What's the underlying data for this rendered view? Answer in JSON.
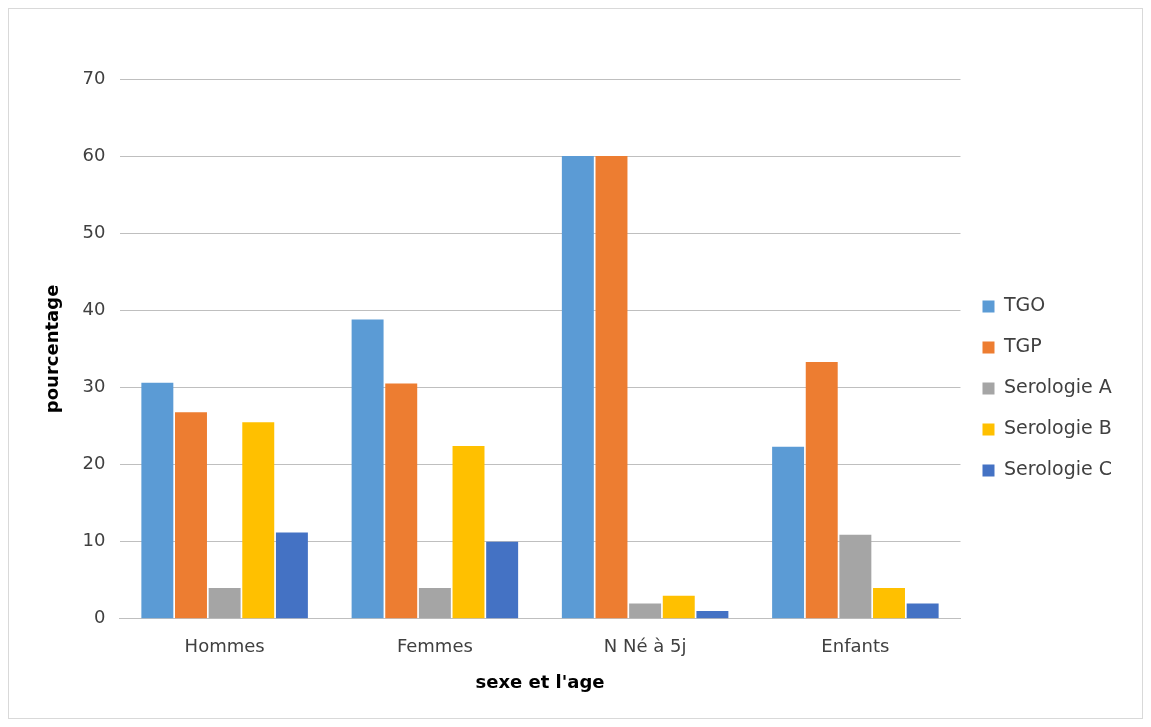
{
  "chart_data": {
    "type": "bar",
    "xlabel": "sexe et l'age",
    "ylabel": "pourcentage",
    "categories": [
      "Hommes",
      "Femmes",
      "N Né à 5j",
      "Enfants"
    ],
    "series": [
      {
        "name": "TGO",
        "color": "#5b9bd5",
        "values": [
          30.6,
          38.8,
          60,
          22.3
        ]
      },
      {
        "name": "TGP",
        "color": "#ed7d31",
        "values": [
          26.8,
          30.5,
          60,
          33.3
        ]
      },
      {
        "name": "Serologie A",
        "color": "#a5a5a5",
        "values": [
          4,
          4,
          2,
          10.9
        ]
      },
      {
        "name": "Serologie B",
        "color": "#ffc000",
        "values": [
          25.5,
          22.4,
          3,
          4
        ]
      },
      {
        "name": "Serologie C",
        "color": "#4472c4",
        "values": [
          11.2,
          10,
          1,
          2
        ]
      }
    ],
    "ylim": [
      0,
      70
    ],
    "yticks": [
      0,
      10,
      20,
      30,
      40,
      50,
      60,
      70
    ],
    "grid": "y",
    "legend": "right"
  }
}
